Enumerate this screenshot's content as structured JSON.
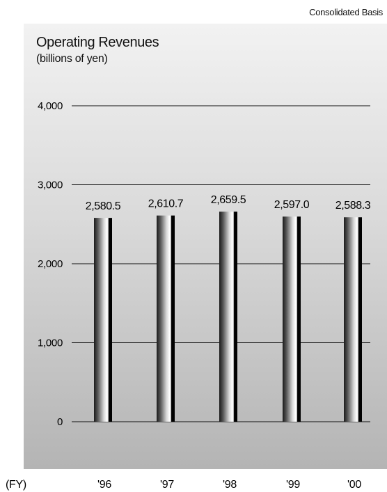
{
  "basis_label": "Consolidated Basis",
  "chart_data": {
    "type": "bar",
    "title": "Operating Revenues",
    "subtitle": "(billions of yen)",
    "xlabel": "(FY)",
    "ylabel": "",
    "categories": [
      "'96",
      "'97",
      "'98",
      "'99",
      "'00"
    ],
    "values": [
      2580.5,
      2610.7,
      2659.5,
      2597.0,
      2588.3
    ],
    "value_labels": [
      "2,580.5",
      "2,610.7",
      "2,659.5",
      "2,597.0",
      "2,588.3"
    ],
    "ylim": [
      0,
      4000
    ],
    "yticks": [
      0,
      1000,
      2000,
      3000,
      4000
    ],
    "ytick_labels": [
      "0",
      "1,000",
      "2,000",
      "3,000",
      "4,000"
    ],
    "grid": true,
    "legend": "none"
  }
}
